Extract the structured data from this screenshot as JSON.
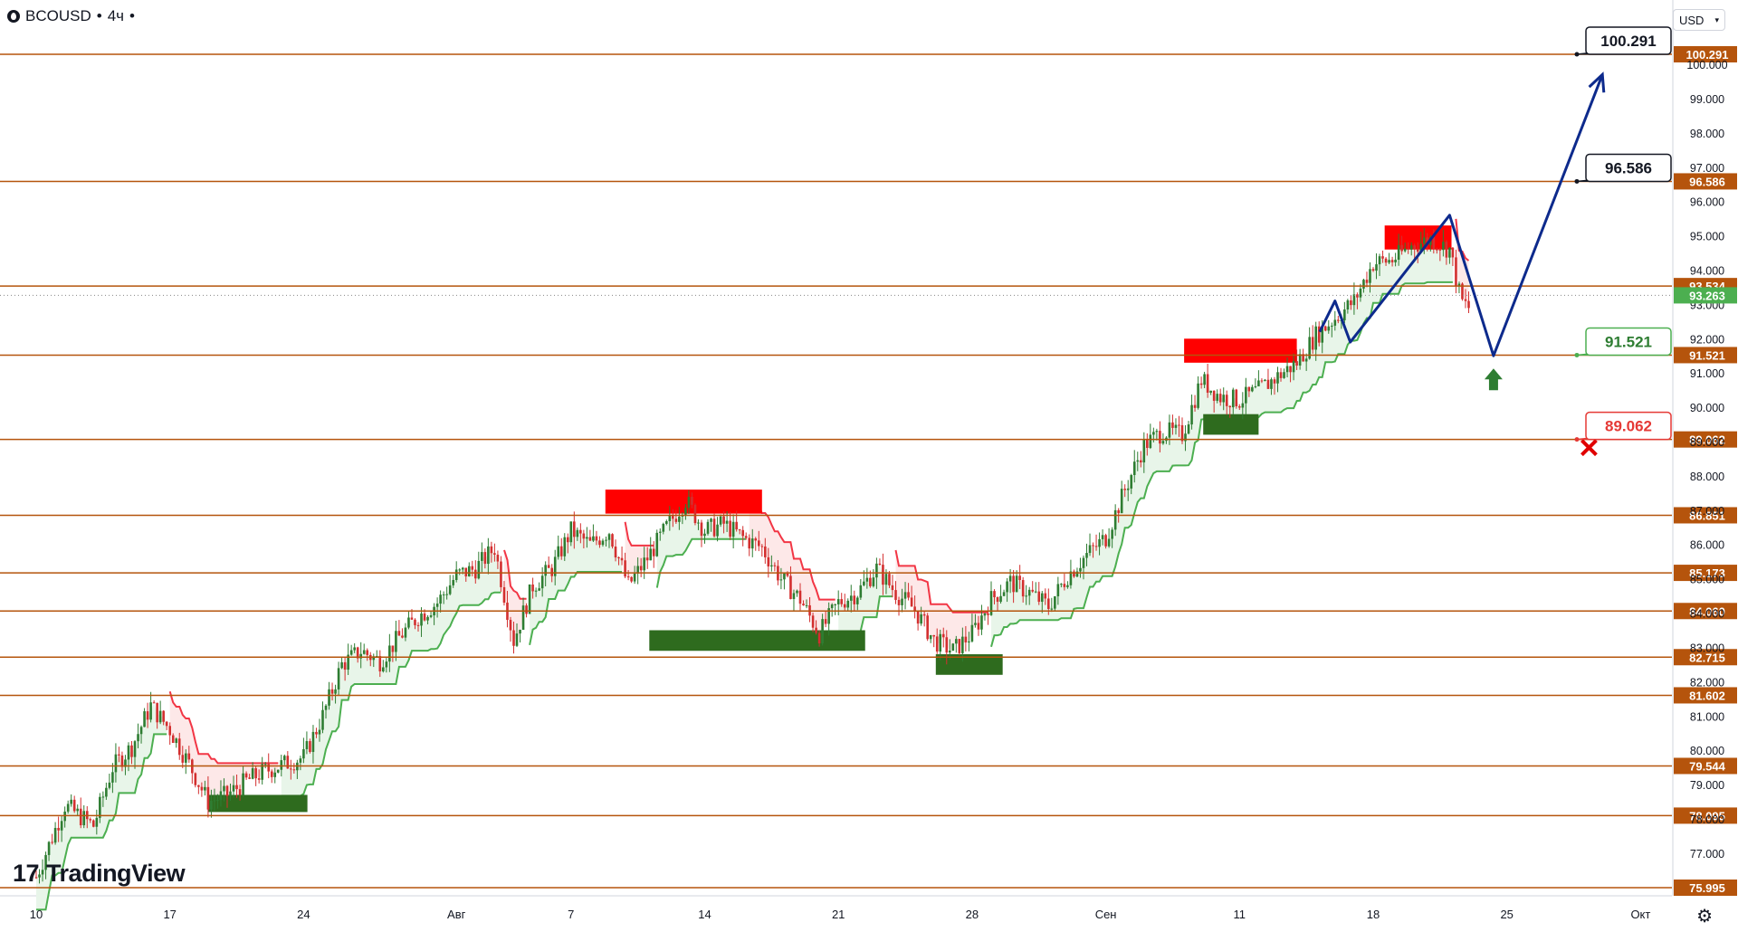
{
  "header": {
    "symbol": "BCOUSD",
    "timeframe": "4ч",
    "separator": "•",
    "currency": "USD"
  },
  "brand": {
    "name": "TradingView",
    "mark": "17"
  },
  "chart_data": {
    "type": "candlestick",
    "y_range": [
      75.995,
      100.291
    ],
    "x_range_days": [
      0,
      83
    ],
    "x_labels": [
      {
        "day": 0,
        "label": "10"
      },
      {
        "day": 7,
        "label": "17"
      },
      {
        "day": 14,
        "label": "24"
      },
      {
        "day": 22,
        "label": "Авг"
      },
      {
        "day": 28,
        "label": "7"
      },
      {
        "day": 35,
        "label": "14"
      },
      {
        "day": 42,
        "label": "21"
      },
      {
        "day": 49,
        "label": "28"
      },
      {
        "day": 56,
        "label": "Сен"
      },
      {
        "day": 63,
        "label": "11"
      },
      {
        "day": 70,
        "label": "18"
      },
      {
        "day": 77,
        "label": "25"
      },
      {
        "day": 84,
        "label": "Окт"
      }
    ],
    "y_ticks": [
      "77.000",
      "78.000",
      "79.000",
      "80.000",
      "81.000",
      "82.000",
      "83.000",
      "84.000",
      "85.000",
      "86.000",
      "87.000",
      "88.000",
      "89.000",
      "90.000",
      "91.000",
      "92.000",
      "93.000",
      "94.000",
      "95.000",
      "96.000",
      "97.000",
      "98.000",
      "99.000",
      "100.000"
    ],
    "levels": [
      "100.291",
      "96.586",
      "93.534",
      "91.521",
      "89.062",
      "86.851",
      "85.173",
      "84.060",
      "82.715",
      "81.602",
      "79.544",
      "78.095",
      "75.995"
    ],
    "current_price": "93.263",
    "targets": [
      {
        "label": "100.291",
        "style": "black",
        "value": 100.291
      },
      {
        "label": "96.586",
        "style": "black",
        "value": 96.586
      },
      {
        "label": "91.521",
        "style": "green",
        "value": 91.521
      },
      {
        "label": "89.062",
        "style": "red",
        "value": 89.062
      }
    ],
    "resistance_zones": [
      {
        "d0": 29.8,
        "d1": 38.0,
        "low": 86.9,
        "high": 87.6
      },
      {
        "d0": 60.1,
        "d1": 66.0,
        "low": 91.3,
        "high": 92.0
      },
      {
        "d0": 70.6,
        "d1": 74.1,
        "low": 94.6,
        "high": 95.3
      }
    ],
    "support_zones": [
      {
        "d0": 9.0,
        "d1": 14.2,
        "low": 78.2,
        "high": 78.7
      },
      {
        "d0": 32.1,
        "d1": 43.4,
        "low": 82.9,
        "high": 83.5
      },
      {
        "d0": 47.1,
        "d1": 50.6,
        "low": 82.2,
        "high": 82.8
      },
      {
        "d0": 61.1,
        "d1": 64.0,
        "low": 89.2,
        "high": 89.8
      }
    ],
    "projection": [
      {
        "day": 67.2,
        "value": 92.2
      },
      {
        "day": 68.0,
        "value": 93.1
      },
      {
        "day": 68.8,
        "value": 91.9
      },
      {
        "day": 74.0,
        "value": 95.6
      },
      {
        "day": 76.3,
        "value": 91.5
      },
      {
        "day": 82.0,
        "value": 99.7
      }
    ],
    "colors": {
      "level": "#b5540c",
      "level_label_bg": "#b5540c",
      "bull": "#2e7d32",
      "bear": "#d32f2f",
      "current_bg": "#4caf50",
      "projection": "#0d2a8c",
      "resist_zone": "#ff0000",
      "support_zone": "#2e6b1e",
      "green_fill": "#e8f5e9",
      "red_fill": "#fde8e8"
    }
  }
}
